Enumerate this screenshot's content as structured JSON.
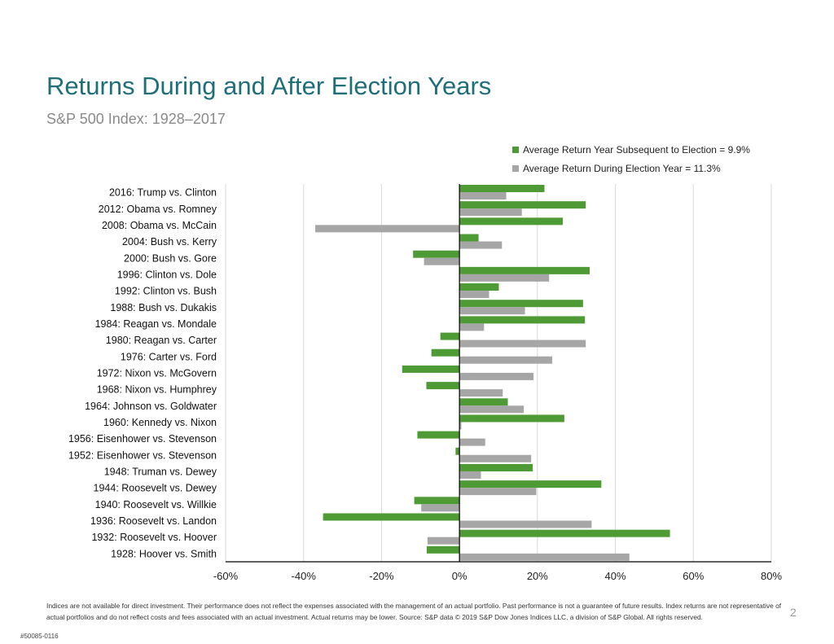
{
  "page": {
    "title": "Returns During and After Election Years",
    "subtitle": "S&P 500 Index: 1928–2017",
    "disclaimer": "Indices are not available for direct investment. Their performance does not reflect the expenses associated with the management of an actual portfolio. Past performance is not a guarantee of future results. Index returns are not representative of actual portfolios and do not reflect costs and fees associated with an actual investment. Actual returns may be lower. Source: S&P data © 2019 S&P Dow Jones Indices LLC, a division of S&P Global. All rights reserved.",
    "page_number": "2",
    "doc_code": "#50085-0116"
  },
  "chart_data": {
    "type": "bar",
    "orientation": "horizontal",
    "title": "",
    "xlabel": "",
    "ylabel": "",
    "xlim": [
      -60,
      80
    ],
    "xticks": [
      -60,
      -40,
      -20,
      0,
      20,
      40,
      60,
      80
    ],
    "tick_suffix": "%",
    "grid": true,
    "legend_position": "top-right",
    "categories": [
      "2016: Trump vs. Clinton",
      "2012: Obama vs. Romney",
      "2008: Obama vs. McCain",
      "2004: Bush vs. Kerry",
      "2000: Bush vs. Gore",
      "1996: Clinton vs. Dole",
      "1992: Clinton vs. Bush",
      "1988: Bush vs. Dukakis",
      "1984: Reagan vs. Mondale",
      "1980: Reagan vs. Carter",
      "1976: Carter vs. Ford",
      "1972: Nixon vs. McGovern",
      "1968: Nixon vs. Humphrey",
      "1964: Johnson vs. Goldwater",
      "1960: Kennedy vs. Nixon",
      "1956: Eisenhower vs. Stevenson",
      "1952: Eisenhower vs. Stevenson",
      "1948: Truman vs. Dewey",
      "1944: Roosevelt vs. Dewey",
      "1940: Roosevelt vs. Willkie",
      "1936: Roosevelt vs. Landon",
      "1932: Roosevelt vs. Hoover",
      "1928: Hoover vs. Smith"
    ],
    "series": [
      {
        "name": "Average Return Year Subsequent to Election = 9.9%",
        "color": "#4e9a35",
        "values": [
          21.8,
          32.4,
          26.5,
          4.9,
          -11.9,
          33.4,
          10.1,
          31.7,
          32.2,
          -4.9,
          -7.2,
          -14.7,
          -8.5,
          12.4,
          26.9,
          -10.8,
          -1.0,
          18.8,
          36.4,
          -11.6,
          -35.0,
          54.0,
          -8.4
        ]
      },
      {
        "name": "Average Return During Election Year = 11.3%",
        "color": "#a6a6a6",
        "values": [
          12.0,
          16.0,
          -37.0,
          10.9,
          -9.1,
          23.0,
          7.6,
          16.8,
          6.3,
          32.4,
          23.8,
          19.0,
          11.1,
          16.5,
          0.5,
          6.6,
          18.4,
          5.5,
          19.7,
          -9.8,
          33.9,
          -8.2,
          43.6
        ]
      }
    ]
  }
}
